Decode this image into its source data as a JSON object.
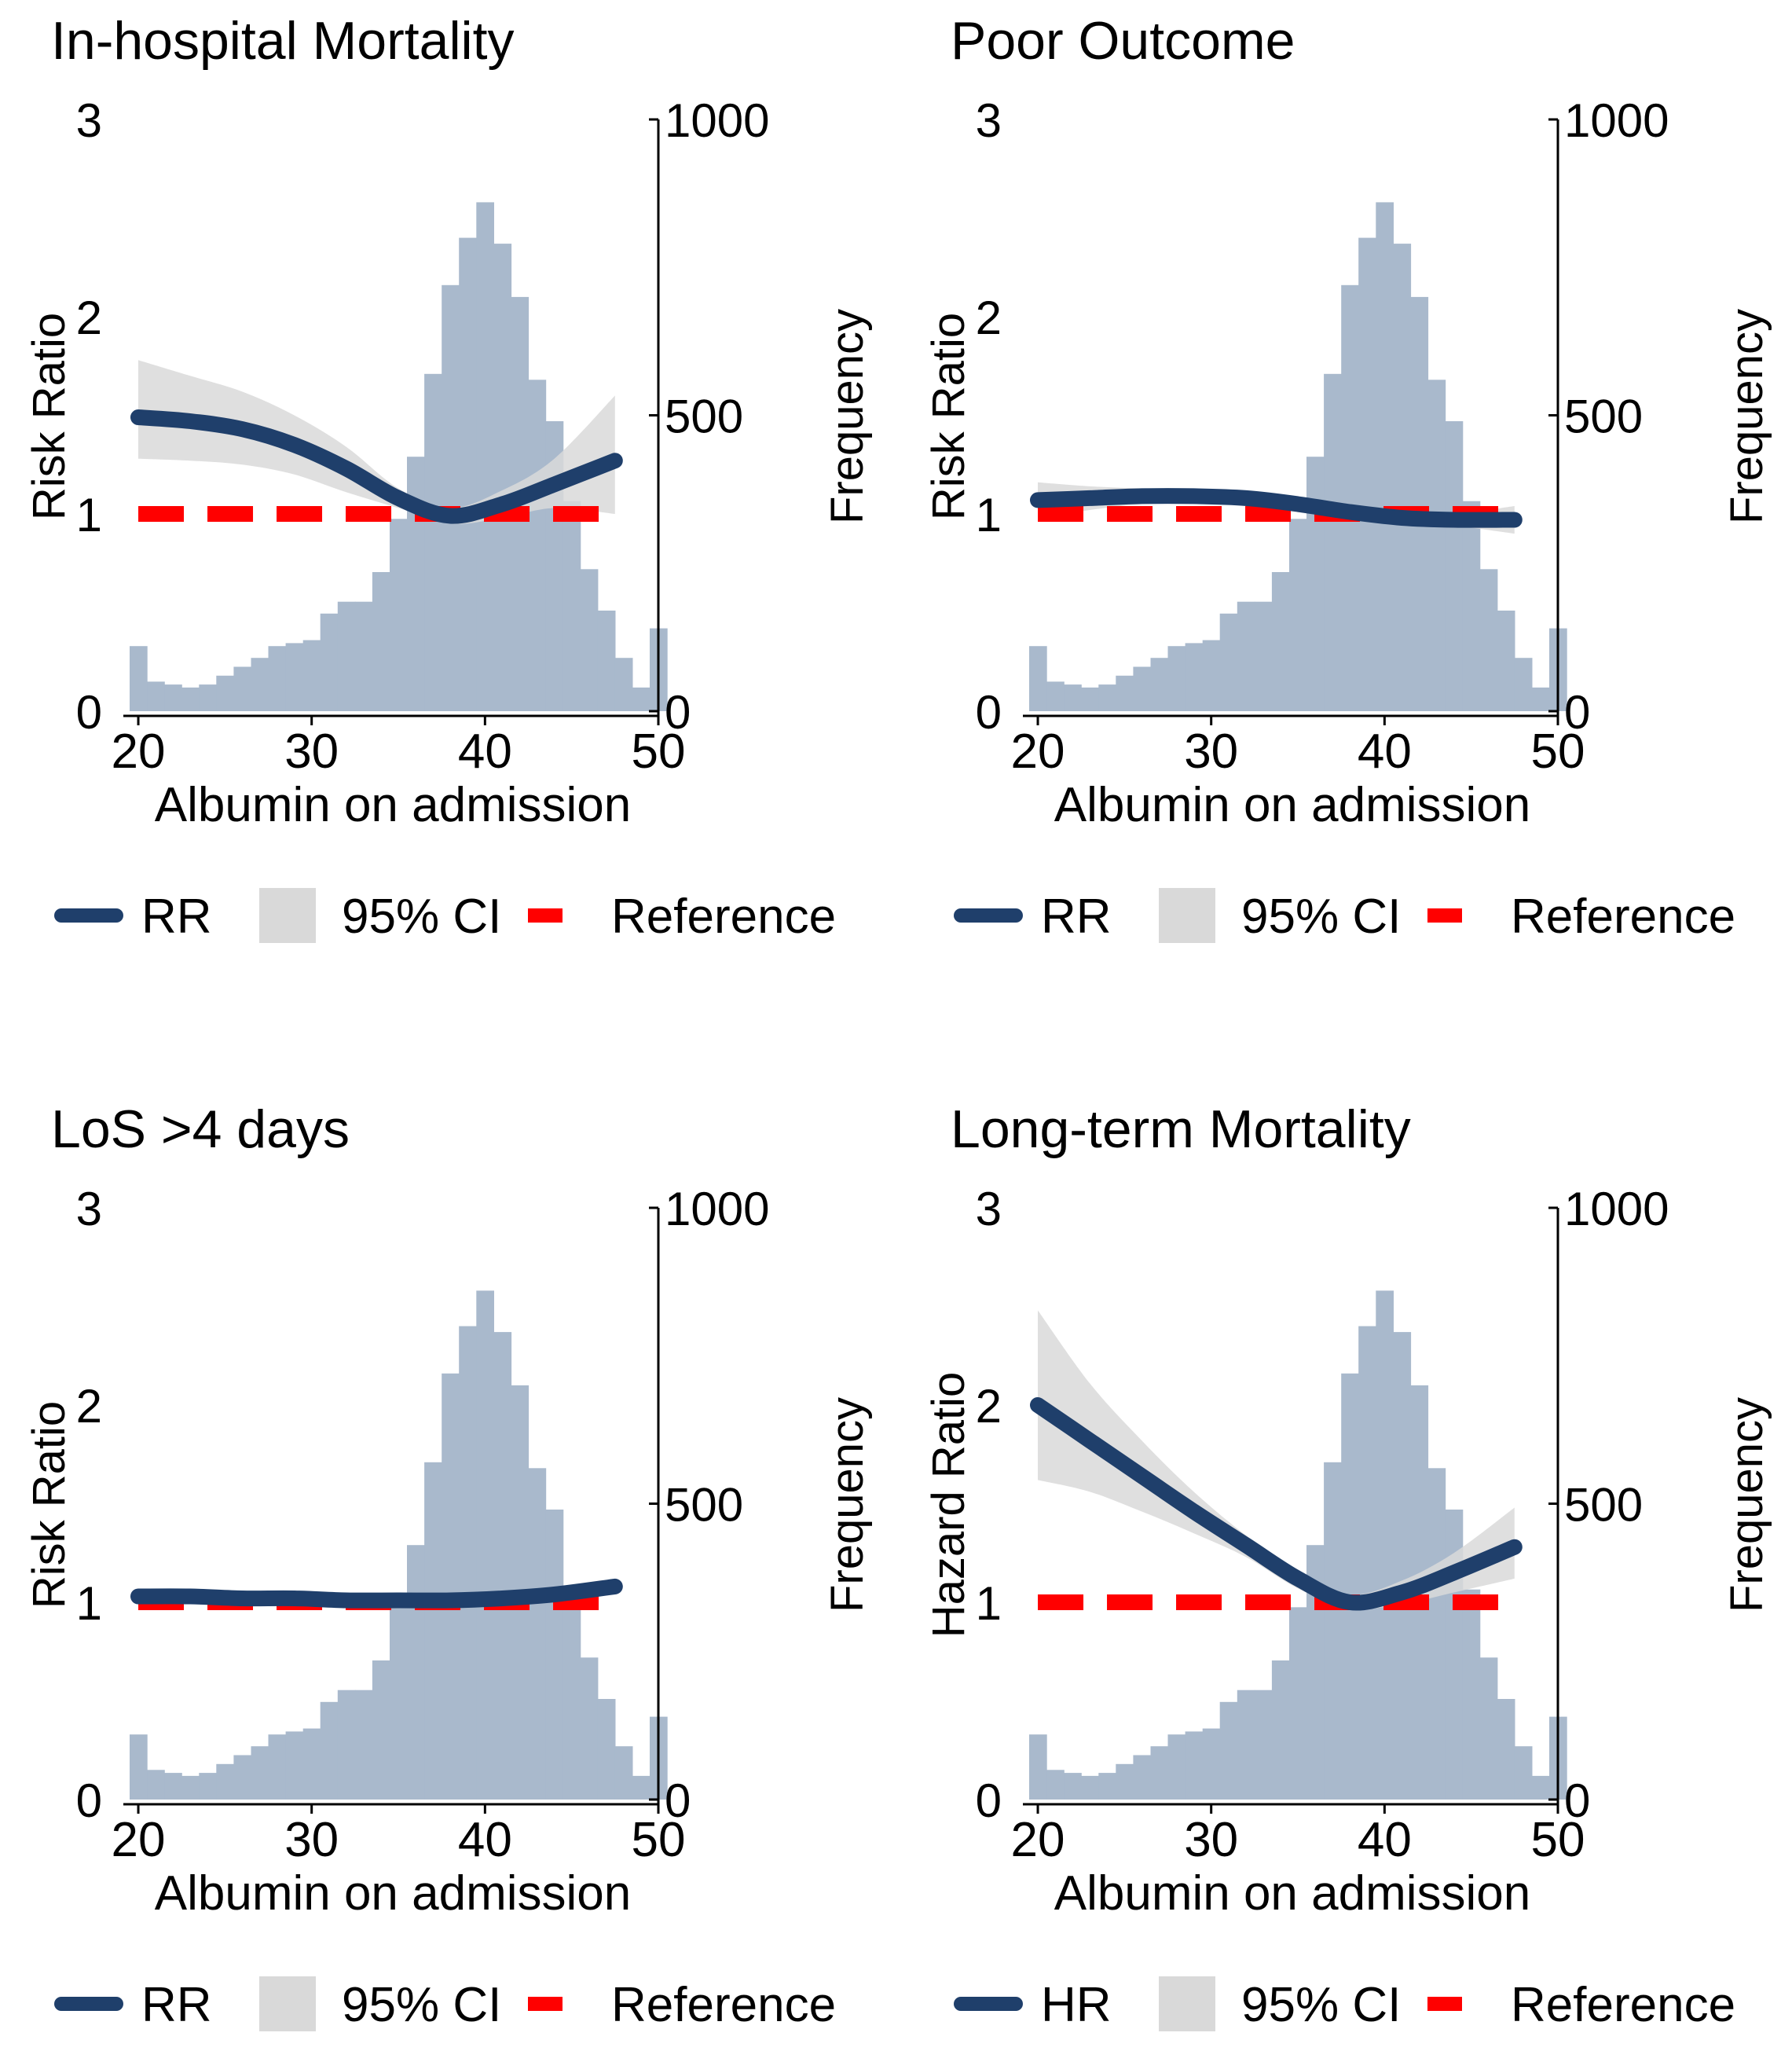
{
  "chart_data": [
    {
      "type": "line",
      "title": "In-hospital Mortality",
      "xlabel": "Albumin on admission",
      "ylabel": "Risk Ratio",
      "y2label": "Frequency",
      "xlim": [
        19.5,
        50
      ],
      "ylim": [
        0,
        3
      ],
      "y2lim": [
        0,
        1000
      ],
      "xticks": [
        20,
        30,
        40,
        50
      ],
      "yticks": [
        0,
        1,
        2,
        3
      ],
      "y2ticks": [
        0,
        500,
        1000
      ],
      "reference": 1,
      "curve": {
        "x": [
          20,
          23,
          26,
          29,
          32,
          35,
          38,
          41,
          44,
          47.5
        ],
        "y": [
          1.49,
          1.47,
          1.43,
          1.35,
          1.23,
          1.08,
          0.99,
          1.05,
          1.15,
          1.27
        ]
      },
      "ci_upper": [
        1.78,
        1.7,
        1.62,
        1.5,
        1.34,
        1.13,
        1.03,
        1.12,
        1.28,
        1.6
      ],
      "ci_lower": [
        1.28,
        1.27,
        1.25,
        1.2,
        1.11,
        1.03,
        0.95,
        0.98,
        1.03,
        1.0
      ],
      "legend": [
        {
          "label": "RR",
          "kind": "line",
          "color": "#1f3f6b"
        },
        {
          "label": "95% CI",
          "kind": "area",
          "color": "#d9d9d9"
        },
        {
          "label": "Reference",
          "kind": "dash",
          "color": "#ff0000"
        }
      ]
    },
    {
      "type": "line",
      "title": "Poor Outcome",
      "xlabel": "Albumin on admission",
      "ylabel": "Risk Ratio",
      "y2label": "Frequency",
      "xlim": [
        19.5,
        50
      ],
      "ylim": [
        0,
        3
      ],
      "y2lim": [
        0,
        1000
      ],
      "xticks": [
        20,
        30,
        40,
        50
      ],
      "yticks": [
        0,
        1,
        2,
        3
      ],
      "y2ticks": [
        0,
        500,
        1000
      ],
      "reference": 1,
      "curve": {
        "x": [
          20,
          23,
          26,
          29,
          32,
          35,
          38,
          41,
          44,
          47.5
        ],
        "y": [
          1.07,
          1.08,
          1.09,
          1.09,
          1.08,
          1.05,
          1.01,
          0.98,
          0.97,
          0.97
        ]
      },
      "ci_upper": [
        1.16,
        1.14,
        1.13,
        1.13,
        1.11,
        1.08,
        1.04,
        1.01,
        1.0,
        1.04
      ],
      "ci_lower": [
        0.98,
        1.02,
        1.05,
        1.05,
        1.05,
        1.02,
        0.98,
        0.95,
        0.94,
        0.9
      ],
      "legend": [
        {
          "label": "RR",
          "kind": "line",
          "color": "#1f3f6b"
        },
        {
          "label": "95% CI",
          "kind": "area",
          "color": "#d9d9d9"
        },
        {
          "label": "Reference",
          "kind": "dash",
          "color": "#ff0000"
        }
      ]
    },
    {
      "type": "line",
      "title": "LoS >4 days",
      "xlabel": "Albumin on admission",
      "ylabel": "Risk Ratio",
      "y2label": "Frequency",
      "xlim": [
        19.5,
        50
      ],
      "ylim": [
        0,
        3
      ],
      "y2lim": [
        0,
        1000
      ],
      "xticks": [
        20,
        30,
        40,
        50
      ],
      "yticks": [
        0,
        1,
        2,
        3
      ],
      "y2ticks": [
        0,
        500,
        1000
      ],
      "reference": 1,
      "curve": {
        "x": [
          20,
          23,
          26,
          29,
          32,
          35,
          38,
          41,
          44,
          47.5
        ],
        "y": [
          1.03,
          1.03,
          1.02,
          1.02,
          1.01,
          1.01,
          1.01,
          1.02,
          1.04,
          1.08
        ]
      },
      "ci_upper": [
        1.06,
        1.05,
        1.04,
        1.03,
        1.02,
        1.02,
        1.02,
        1.04,
        1.07,
        1.12
      ],
      "ci_lower": [
        1.0,
        1.01,
        1.01,
        1.01,
        1.0,
        1.0,
        1.0,
        1.0,
        1.01,
        1.04
      ],
      "legend": [
        {
          "label": "RR",
          "kind": "line",
          "color": "#1f3f6b"
        },
        {
          "label": "95% CI",
          "kind": "area",
          "color": "#d9d9d9"
        },
        {
          "label": "Reference",
          "kind": "dash",
          "color": "#ff0000"
        }
      ]
    },
    {
      "type": "line",
      "title": "Long-term Mortality",
      "xlabel": "Albumin on admission",
      "ylabel": "Hazard Ratio",
      "y2label": "Frequency",
      "xlim": [
        19.5,
        50
      ],
      "ylim": [
        0,
        3
      ],
      "y2lim": [
        0,
        1000
      ],
      "xticks": [
        20,
        30,
        40,
        50
      ],
      "yticks": [
        0,
        1,
        2,
        3
      ],
      "y2ticks": [
        0,
        500,
        1000
      ],
      "reference": 1,
      "curve": {
        "x": [
          20,
          23,
          26,
          29,
          32,
          35,
          38,
          41,
          44,
          47.5
        ],
        "y": [
          2.0,
          1.82,
          1.64,
          1.46,
          1.29,
          1.12,
          1.0,
          1.05,
          1.15,
          1.28
        ]
      },
      "ci_upper": [
        2.48,
        2.11,
        1.82,
        1.56,
        1.34,
        1.16,
        1.04,
        1.11,
        1.25,
        1.48
      ],
      "ci_lower": [
        1.62,
        1.56,
        1.46,
        1.35,
        1.23,
        1.07,
        0.97,
        0.99,
        1.05,
        1.12
      ],
      "legend": [
        {
          "label": "HR",
          "kind": "line",
          "color": "#1f3f6b"
        },
        {
          "label": "95% CI",
          "kind": "area",
          "color": "#d9d9d9"
        },
        {
          "label": "Reference",
          "kind": "dash",
          "color": "#ff0000"
        }
      ]
    }
  ],
  "histogram": {
    "bin_start": 19.5,
    "bin_width": 1,
    "counts": [
      110,
      50,
      45,
      40,
      45,
      60,
      75,
      90,
      110,
      115,
      120,
      165,
      185,
      185,
      235,
      325,
      430,
      570,
      720,
      800,
      860,
      790,
      700,
      560,
      490,
      355,
      240,
      170,
      90,
      40,
      140
    ],
    "color": "#a9b9cc"
  },
  "colors": {
    "curve": "#1f3f6b",
    "ci": "#d9d9d9",
    "reference": "#ff0000",
    "axis": "#000000"
  }
}
